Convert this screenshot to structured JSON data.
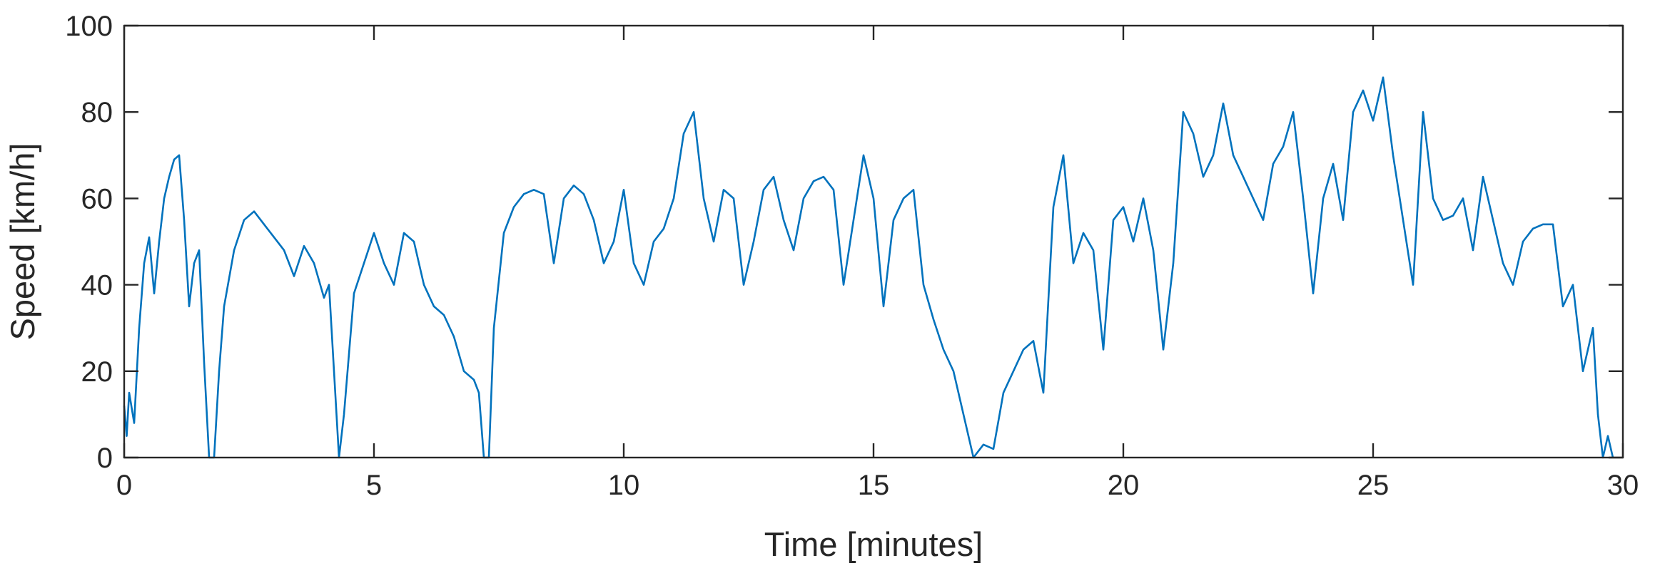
{
  "chart_data": {
    "type": "line",
    "title": "",
    "xlabel": "Time [minutes]",
    "ylabel": "Speed [km/h]",
    "xlim": [
      0,
      30
    ],
    "ylim": [
      0,
      100
    ],
    "xticks": [
      0,
      5,
      10,
      15,
      20,
      25,
      30
    ],
    "yticks": [
      0,
      20,
      40,
      60,
      80,
      100
    ],
    "grid": false,
    "legend": "none",
    "line_color": "#0072BD",
    "series": [
      {
        "x": [
          0.0,
          0.05,
          0.1,
          0.2,
          0.3,
          0.4,
          0.5,
          0.6,
          0.7,
          0.8,
          0.9,
          1.0,
          1.1,
          1.2,
          1.3,
          1.4,
          1.5,
          1.6,
          1.7,
          1.8,
          1.9,
          2.0,
          2.2,
          2.4,
          2.6,
          2.8,
          3.0,
          3.2,
          3.4,
          3.6,
          3.8,
          4.0,
          4.1,
          4.2,
          4.3,
          4.4,
          4.6,
          4.8,
          5.0,
          5.2,
          5.4,
          5.6,
          5.8,
          6.0,
          6.2,
          6.4,
          6.6,
          6.8,
          7.0,
          7.1,
          7.2,
          7.3,
          7.4,
          7.6,
          7.8,
          8.0,
          8.2,
          8.4,
          8.6,
          8.8,
          9.0,
          9.2,
          9.4,
          9.6,
          9.8,
          10.0,
          10.2,
          10.4,
          10.6,
          10.8,
          11.0,
          11.2,
          11.4,
          11.6,
          11.8,
          12.0,
          12.2,
          12.4,
          12.6,
          12.8,
          13.0,
          13.2,
          13.4,
          13.6,
          13.8,
          14.0,
          14.2,
          14.4,
          14.6,
          14.8,
          15.0,
          15.2,
          15.4,
          15.6,
          15.8,
          16.0,
          16.2,
          16.4,
          16.6,
          16.8,
          17.0,
          17.2,
          17.4,
          17.6,
          17.8,
          18.0,
          18.2,
          18.4,
          18.6,
          18.8,
          19.0,
          19.2,
          19.4,
          19.6,
          19.8,
          20.0,
          20.2,
          20.4,
          20.6,
          20.8,
          21.0,
          21.2,
          21.4,
          21.6,
          21.8,
          22.0,
          22.2,
          22.4,
          22.6,
          22.8,
          23.0,
          23.2,
          23.4,
          23.6,
          23.8,
          24.0,
          24.2,
          24.4,
          24.6,
          24.8,
          25.0,
          25.2,
          25.4,
          25.6,
          25.8,
          26.0,
          26.2,
          26.4,
          26.6,
          26.8,
          27.0,
          27.2,
          27.4,
          27.6,
          27.8,
          28.0,
          28.2,
          28.4,
          28.6,
          28.8,
          29.0,
          29.2,
          29.4,
          29.5,
          29.6,
          29.7,
          29.8
        ],
        "values": [
          12,
          5,
          15,
          8,
          30,
          45,
          51,
          38,
          50,
          60,
          65,
          69,
          70,
          55,
          35,
          45,
          48,
          22,
          0,
          0,
          20,
          35,
          48,
          55,
          57,
          54,
          51,
          48,
          42,
          49,
          45,
          37,
          40,
          20,
          0,
          10,
          38,
          45,
          52,
          45,
          40,
          52,
          50,
          40,
          35,
          33,
          28,
          20,
          18,
          15,
          0,
          0,
          30,
          52,
          58,
          61,
          62,
          61,
          45,
          60,
          63,
          61,
          55,
          45,
          50,
          62,
          45,
          40,
          50,
          53,
          60,
          75,
          80,
          60,
          50,
          62,
          60,
          40,
          50,
          62,
          65,
          55,
          48,
          60,
          64,
          65,
          62,
          40,
          55,
          70,
          60,
          35,
          55,
          60,
          62,
          40,
          32,
          25,
          20,
          10,
          0,
          3,
          2,
          15,
          20,
          25,
          27,
          15,
          58,
          70,
          45,
          52,
          48,
          25,
          55,
          58,
          50,
          60,
          48,
          25,
          45,
          80,
          75,
          65,
          70,
          82,
          70,
          65,
          60,
          55,
          68,
          72,
          80,
          60,
          38,
          60,
          68,
          55,
          80,
          85,
          78,
          88,
          70,
          55,
          40,
          80,
          60,
          55,
          56,
          60,
          48,
          65,
          55,
          45,
          40,
          50,
          53,
          54,
          54,
          35,
          40,
          20,
          30,
          10,
          0,
          5,
          0
        ]
      }
    ]
  }
}
